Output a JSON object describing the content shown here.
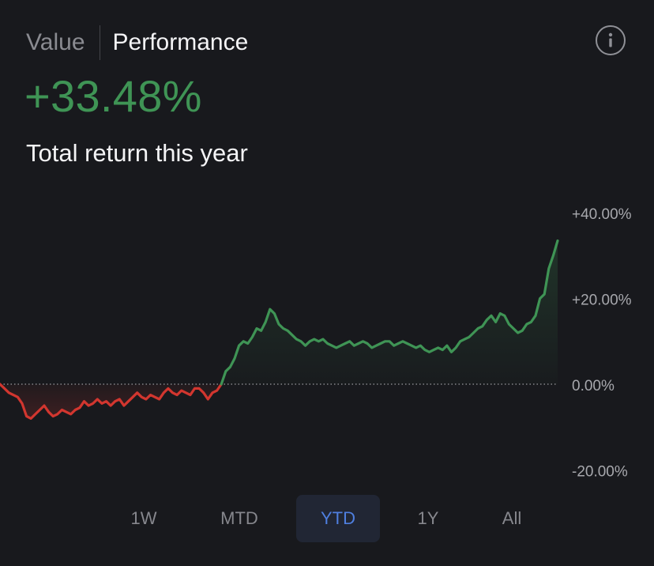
{
  "tabs": {
    "value_label": "Value",
    "performance_label": "Performance"
  },
  "headline": {
    "value": "+33.48%",
    "subtitle": "Total return this year"
  },
  "icons": {
    "info": "info-icon"
  },
  "colors": {
    "positive": "#3f9455",
    "negative": "#d2362f",
    "active_range_bg": "#212634",
    "active_range_text": "#4f7fe0"
  },
  "ranges": [
    {
      "label": "1W",
      "active": false
    },
    {
      "label": "MTD",
      "active": false
    },
    {
      "label": "YTD",
      "active": true
    },
    {
      "label": "1Y",
      "active": false
    },
    {
      "label": "All",
      "active": false
    }
  ],
  "chart_data": {
    "type": "line",
    "title": "",
    "xlabel": "",
    "ylabel": "",
    "ylim": [
      -20,
      40
    ],
    "ytick_labels": [
      "+40.00%",
      "+20.00%",
      "0.00%",
      "-20.00%"
    ],
    "ytick_values": [
      40,
      20,
      0,
      -20
    ],
    "baseline": 0,
    "grid": false,
    "series": [
      {
        "values": [
          0,
          -1,
          -2,
          -2.5,
          -3,
          -4.5,
          -7.5,
          -8,
          -7,
          -6,
          -5,
          -6.5,
          -7.5,
          -7,
          -6,
          -6.5,
          -7,
          -6,
          -5.5,
          -4,
          -5,
          -4.5,
          -3.5,
          -4.5,
          -4,
          -5,
          -4,
          -3.5,
          -5,
          -4,
          -3,
          -2,
          -3,
          -3.5,
          -2.5,
          -3,
          -3.5,
          -2,
          -1,
          -2,
          -2.5,
          -1.5,
          -2,
          -2.5,
          -1,
          -1,
          -2,
          -3.5,
          -2,
          -1.5,
          0,
          3,
          4,
          6,
          9,
          10,
          9.5,
          11,
          13,
          12.5,
          14.5,
          17.5,
          16.5,
          14,
          13,
          12.5,
          11.5,
          10.5,
          10,
          9,
          10,
          10.5,
          10,
          10.5,
          9.5,
          9,
          8.5,
          9,
          9.5,
          10,
          9,
          9.5,
          10,
          9.5,
          8.5,
          9,
          9.5,
          10,
          10,
          9,
          9.5,
          10,
          9.5,
          9,
          8.5,
          9,
          8,
          7.5,
          8,
          8.5,
          8,
          9,
          7.5,
          8.5,
          10,
          10.5,
          11,
          12,
          13,
          13.5,
          15,
          16,
          14.5,
          16.5,
          16,
          14,
          13,
          12,
          12.5,
          14,
          14.5,
          16,
          20,
          21,
          27,
          30,
          33.48
        ]
      }
    ]
  }
}
